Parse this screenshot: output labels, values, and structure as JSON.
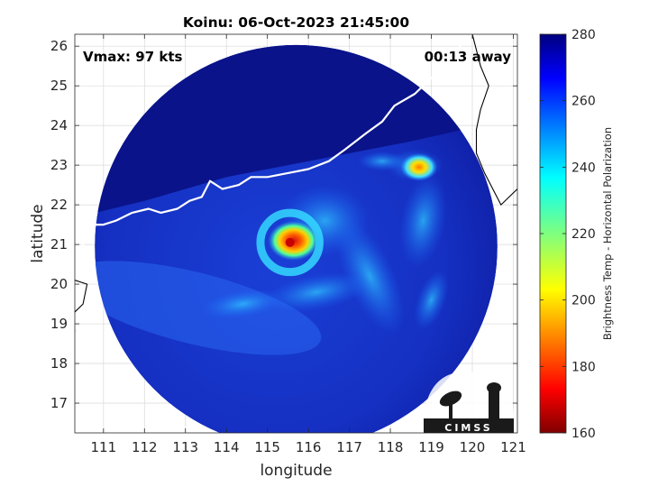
{
  "chart_data": {
    "type": "heatmap",
    "title": "Koinu: 06-Oct-2023 21:45:00",
    "xlabel": "longitude",
    "ylabel": "latitude",
    "xlim": [
      110.3,
      121.1
    ],
    "ylim": [
      16.25,
      26.3
    ],
    "x_ticks": [
      111,
      112,
      113,
      114,
      115,
      116,
      117,
      118,
      119,
      120,
      121
    ],
    "y_ticks": [
      17,
      18,
      19,
      20,
      21,
      22,
      23,
      24,
      25,
      26
    ],
    "grid": true,
    "annotations": {
      "vmax": "Vmax: 97 kts",
      "offset": "00:13 away"
    },
    "colorbar": {
      "label": "Brightness Temp - Horizontal Polarization",
      "range": [
        160,
        280
      ],
      "ticks": [
        160,
        180,
        200,
        220,
        240,
        260,
        280
      ],
      "placement": "right",
      "colormap": "jet"
    },
    "swath": {
      "center_lon": 115.7,
      "center_lat": 20.95,
      "radius_deg": 5.4
    },
    "storm": {
      "eye_lon": 115.55,
      "eye_lat": 21.05,
      "eye_min_temp": 180
    },
    "logo": "CIMSS",
    "colors": {
      "background_cold": "#0a0f8a",
      "coastline": "#ffffff",
      "land_outline": "#000000"
    }
  }
}
